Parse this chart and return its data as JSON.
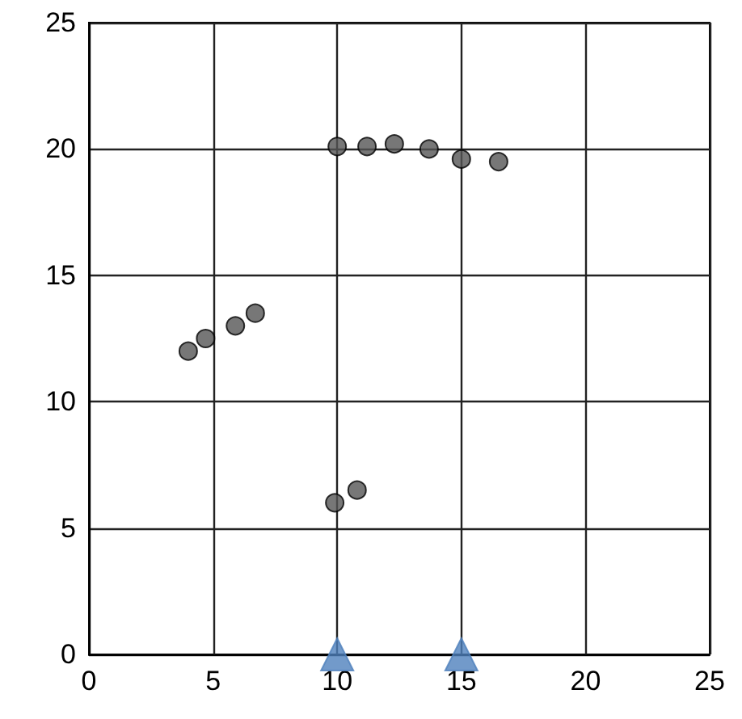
{
  "chart_data": {
    "type": "scatter",
    "xlim": [
      0,
      25
    ],
    "ylim": [
      0,
      25
    ],
    "xticks": [
      0,
      5,
      10,
      15,
      20,
      25
    ],
    "yticks": [
      0,
      5,
      10,
      15,
      20,
      25
    ],
    "grid": true,
    "series": [
      {
        "color": "#555555",
        "marker": "circle",
        "x": [
          4,
          4.7,
          5.9,
          6.7,
          9.9,
          10.8,
          10,
          11.2,
          12.3,
          13.7,
          15,
          16.5
        ],
        "values": [
          12,
          12.5,
          13,
          13.5,
          6,
          6.5,
          20.1,
          20.1,
          20.2,
          20,
          19.6,
          19.5
        ]
      },
      {
        "color": "#4f81bd",
        "marker": "triangle",
        "x": [
          10,
          15
        ],
        "values": [
          0,
          0
        ]
      }
    ]
  }
}
